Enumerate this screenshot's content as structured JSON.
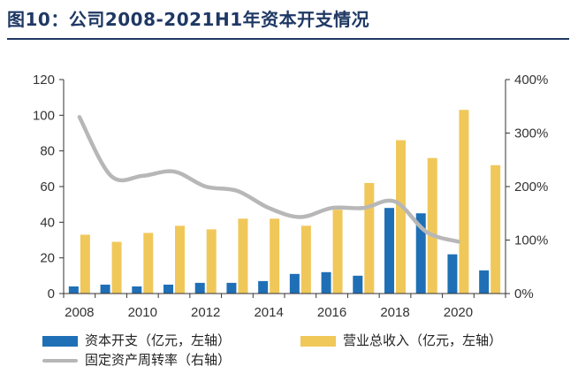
{
  "title": "图10：公司2008-2021H1年资本开支情况",
  "colors": {
    "capex": "#1f6fb6",
    "revenue": "#f0c85a",
    "turnover": "#b7b7b7",
    "axis": "#333333",
    "title": "#1f3864"
  },
  "chart_data": {
    "type": "bar",
    "title": "图10：公司2008-2021H1年资本开支情况",
    "categories": [
      "2008",
      "2009",
      "2010",
      "2011",
      "2012",
      "2013",
      "2014",
      "2015",
      "2016",
      "2017",
      "2018",
      "2019",
      "2020",
      "2021H1"
    ],
    "x_tick_labels": [
      "2008",
      "2010",
      "2012",
      "2014",
      "2016",
      "2018",
      "2020"
    ],
    "series": [
      {
        "name": "资本开支（亿元，左轴）",
        "type": "bar",
        "axis": "left",
        "values": [
          4,
          5,
          4,
          5,
          6,
          6,
          7,
          11,
          12,
          10,
          48,
          45,
          22,
          13
        ]
      },
      {
        "name": "营业总收入（亿元，左轴）",
        "type": "bar",
        "axis": "left",
        "values": [
          33,
          29,
          34,
          38,
          36,
          42,
          42,
          38,
          47,
          62,
          86,
          76,
          103,
          72
        ]
      },
      {
        "name": "固定资产周转率（右轴）",
        "type": "line",
        "axis": "right",
        "values": [
          330,
          220,
          220,
          228,
          200,
          192,
          160,
          143,
          160,
          160,
          172,
          115,
          97,
          null
        ]
      }
    ],
    "y_left": {
      "ylim": [
        0,
        120
      ],
      "ticks": [
        "0",
        "20",
        "40",
        "60",
        "80",
        "100",
        "120"
      ]
    },
    "y_right": {
      "ylim": [
        0,
        400
      ],
      "ticks": [
        "0%",
        "100%",
        "200%",
        "300%",
        "400%"
      ]
    },
    "grid": false,
    "legend_position": "bottom"
  },
  "legend": {
    "capex_label": "资本开支（亿元，左轴）",
    "revenue_label": "营业总收入（亿元，左轴）",
    "turnover_label": "固定资产周转率（右轴）"
  }
}
